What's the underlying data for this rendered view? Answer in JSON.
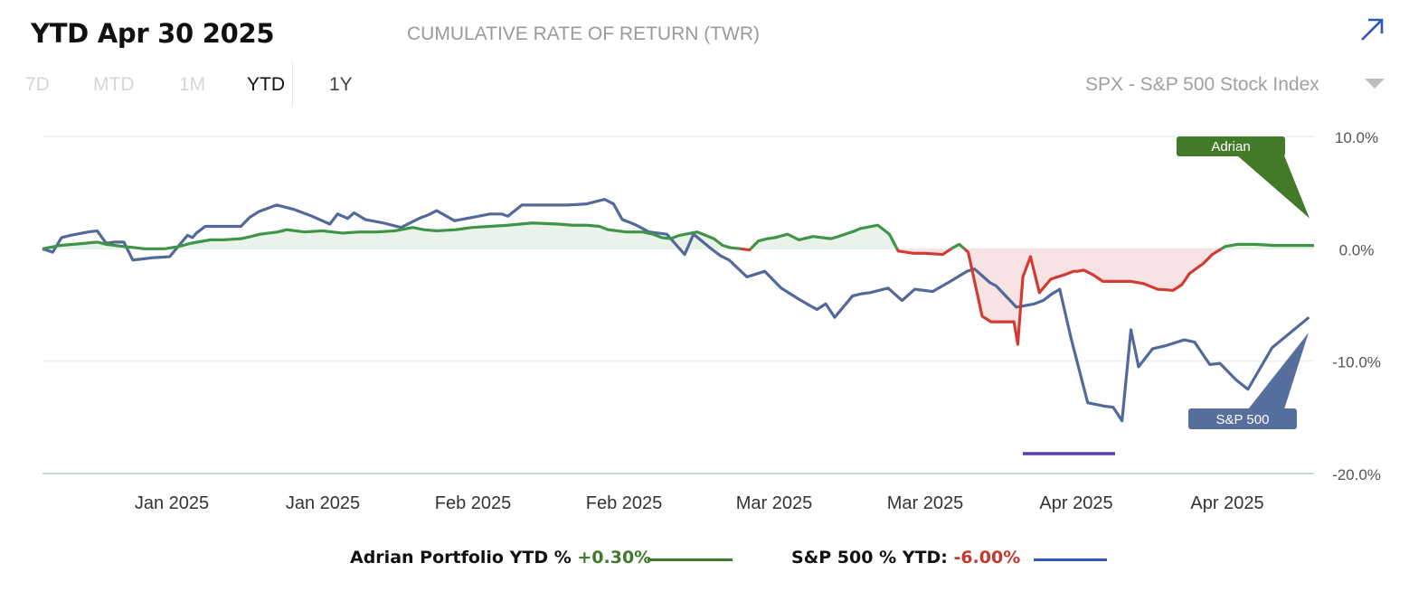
{
  "header": {
    "title": "YTD Apr 30 2025",
    "subtitle": "CUMULATIVE RATE OF RETURN (TWR)",
    "expand_icon": "arrow-up-right-icon"
  },
  "ranges": [
    {
      "label": "7D",
      "state": "disabled"
    },
    {
      "label": "MTD",
      "state": "disabled"
    },
    {
      "label": "1M",
      "state": "disabled"
    },
    {
      "label": "YTD",
      "state": "active"
    },
    {
      "label": "1Y",
      "state": "enabled"
    }
  ],
  "benchmark": {
    "label": "SPX - S&P 500 Stock Index",
    "icon": "caret-down-icon"
  },
  "legend": {
    "portfolio_label": "Adrian Portfolio YTD % ",
    "portfolio_value": "+0.30%",
    "sp500_label": "S&P 500 % YTD: ",
    "sp500_value": "-6.00%"
  },
  "colors": {
    "portfolio": "#3f9448",
    "portfolio_negative": "#d23b32",
    "sp500": "#52699a",
    "fill_positive": "#e9f3e9",
    "fill_negative": "#f7e3e3",
    "callout_portfolio": "#437a2a",
    "callout_sp500": "#566f9c",
    "legend_portfolio": "#3f7a2b",
    "legend_sp500": "#2f56b8",
    "marker": "#5b3fa8"
  },
  "chart_data": {
    "type": "line",
    "title": "CUMULATIVE RATE OF RETURN (TWR)",
    "x_tick_labels": [
      "Jan 2025",
      "Jan 2025",
      "Feb 2025",
      "Feb 2025",
      "Mar 2025",
      "Mar 2025",
      "Apr 2025",
      "Apr 2025"
    ],
    "y_tick_labels": [
      "10.0%",
      "0.0%",
      "-10.0%",
      "-20.0%"
    ],
    "y_ticks": [
      10,
      0,
      -10,
      -20
    ],
    "ylim": [
      -20,
      10
    ],
    "xlim": [
      0,
      100
    ],
    "callouts": [
      {
        "name": "portfolio",
        "label": "Adrian"
      },
      {
        "name": "sp500",
        "label": "S&P 500"
      }
    ],
    "series": [
      {
        "name": "Adrian Portfolio YTD %",
        "x": [
          0,
          1.4,
          3.4,
          4.3,
          5.0,
          5.7,
          6.4,
          7.3,
          8.0,
          8.9,
          9.6,
          10.7,
          11.7,
          12.7,
          13.2,
          14.2,
          15.6,
          16.4,
          17.1,
          17.8,
          18.5,
          19.2,
          20.6,
          22.0,
          23.6,
          24.9,
          25.6,
          26.3,
          27.7,
          29.1,
          30.0,
          31.0,
          32.5,
          33.8,
          35.2,
          36.6,
          38.5,
          40.6,
          41.7,
          42.8,
          43.8,
          44.5,
          45.9,
          47.2,
          48.0,
          48.7,
          49.4,
          50.1,
          51.5,
          52.8,
          53.5,
          54.1,
          54.9,
          55.6,
          56.3,
          57.0,
          57.6,
          58.6,
          59.5,
          60.6,
          61.3,
          62.0,
          62.6,
          63.9,
          64.3,
          65.7,
          66.6,
          67.3,
          68.5,
          69.4,
          70.8,
          71.6,
          72.1,
          72.8,
          73.9,
          74.6,
          75.6,
          76.4,
          76.7,
          77.1,
          77.7,
          78.4,
          79.3,
          80.4,
          81.1,
          81.4,
          81.9,
          82.6,
          83.4,
          84.6,
          85.6,
          86.6,
          87.7,
          88.9,
          89.6,
          90.2,
          91.3,
          92.0,
          93.0,
          94.0,
          94.7,
          95.4,
          96.8,
          98.5,
          100
        ],
        "values": [
          0,
          0.3,
          0.5,
          0.6,
          0.4,
          0.3,
          0.2,
          0.1,
          0.0,
          0.0,
          0.0,
          0.2,
          0.5,
          0.7,
          0.8,
          0.8,
          0.9,
          1.1,
          1.3,
          1.4,
          1.5,
          1.7,
          1.5,
          1.6,
          1.4,
          1.5,
          1.5,
          1.5,
          1.6,
          1.9,
          1.7,
          1.6,
          1.7,
          1.9,
          2.0,
          2.1,
          2.3,
          2.2,
          2.1,
          2.1,
          2.0,
          1.7,
          1.5,
          1.5,
          1.3,
          1.0,
          0.9,
          1.2,
          1.5,
          0.9,
          0.3,
          0.1,
          0.0,
          -0.1,
          0.7,
          0.9,
          1.0,
          1.3,
          0.8,
          1.1,
          1.0,
          0.9,
          1.1,
          1.6,
          1.8,
          2.1,
          1.3,
          -0.2,
          -0.4,
          -0.4,
          -0.5,
          0.1,
          0.4,
          -0.3,
          -6.0,
          -6.5,
          -6.5,
          -6.5,
          -8.5,
          -2.5,
          -0.7,
          -3.9,
          -2.7,
          -2.3,
          -2.0,
          -2.0,
          -1.9,
          -2.3,
          -2.9,
          -2.9,
          -2.9,
          -3.1,
          -3.6,
          -3.7,
          -3.2,
          -2.2,
          -1.3,
          -0.5,
          0.2,
          0.4,
          0.4,
          0.4,
          0.3,
          0.3,
          0.3
        ]
      },
      {
        "name": "S&P 500 % YTD",
        "x": [
          0,
          0.8,
          1.5,
          2.2,
          3.6,
          4.3,
          5.0,
          5.7,
          6.4,
          7.1,
          7.9,
          8.6,
          10.0,
          11.4,
          11.8,
          12.1,
          12.8,
          13.5,
          15.6,
          16.3,
          17.0,
          18.4,
          19.8,
          21.2,
          22.6,
          23.2,
          24.0,
          24.5,
          25.4,
          26.8,
          28.2,
          29.6,
          30.3,
          31.0,
          32.4,
          33.8,
          35.2,
          36.1,
          36.6,
          37.7,
          38.6,
          39.3,
          41.4,
          42.8,
          44.2,
          44.9,
          45.6,
          46.3,
          46.7,
          47.7,
          49.1,
          50.5,
          51.2,
          52.6,
          53.3,
          54.0,
          55.4,
          56.8,
          58.1,
          59.5,
          60.9,
          61.6,
          62.3,
          63.7,
          64.4,
          65.1,
          66.5,
          67.6,
          68.6,
          70.0,
          71.4,
          72.7,
          73.3,
          74.5,
          75.0,
          76.6,
          78.0,
          78.7,
          79.4,
          80.0,
          80.9,
          82.2,
          83.5,
          84.2,
          84.9,
          85.6,
          86.2,
          87.3,
          88.4,
          89.8,
          90.6,
          91.8,
          92.6,
          93.9,
          94.8,
          96.7,
          99.6
        ],
        "values": [
          0,
          -0.3,
          1.0,
          1.2,
          1.5,
          1.6,
          0.5,
          0.6,
          0.6,
          -1.0,
          -0.9,
          -0.8,
          -0.7,
          1.2,
          1.0,
          1.4,
          2.0,
          2.0,
          2.0,
          2.8,
          3.3,
          3.9,
          3.5,
          2.9,
          2.2,
          3.1,
          2.7,
          3.2,
          2.6,
          2.3,
          1.9,
          2.7,
          3.0,
          3.4,
          2.5,
          2.8,
          3.1,
          3.1,
          2.9,
          3.9,
          3.9,
          3.9,
          3.9,
          4.0,
          4.4,
          4.0,
          2.6,
          2.3,
          2.1,
          1.5,
          1.3,
          -0.5,
          1.3,
          0.0,
          -0.6,
          -1.0,
          -2.5,
          -2.0,
          -3.5,
          -4.5,
          -5.4,
          -4.9,
          -6.1,
          -4.2,
          -4.0,
          -3.9,
          -3.5,
          -4.6,
          -3.6,
          -3.8,
          -2.9,
          -2.0,
          -1.8,
          -3.0,
          -3.3,
          -5.2,
          -4.9,
          -4.6,
          -4.0,
          -3.6,
          -8.0,
          -13.7,
          -14.0,
          -14.1,
          -15.3,
          -7.2,
          -10.5,
          -8.9,
          -8.6,
          -8.1,
          -8.3,
          -10.3,
          -10.2,
          -11.7,
          -12.5,
          -8.8,
          -6.1
        ]
      }
    ]
  }
}
